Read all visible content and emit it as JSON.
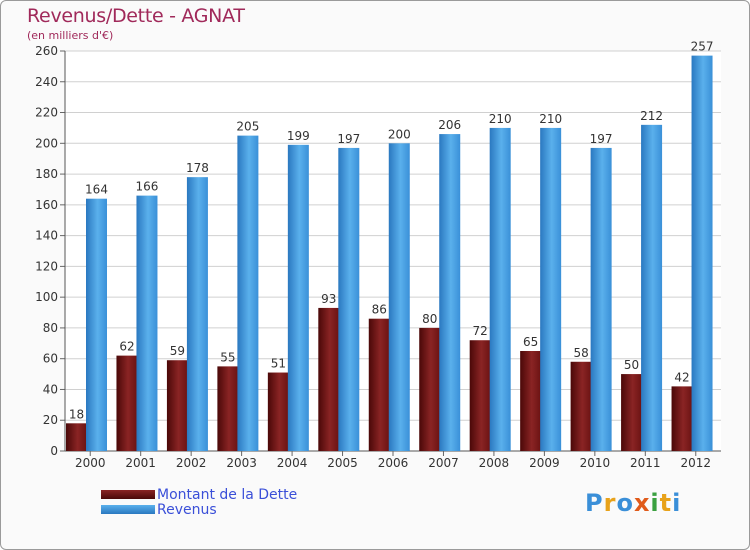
{
  "chart_data": {
    "type": "bar",
    "title": "Revenus/Dette - AGNAT",
    "subtitle": "(en milliers d'€)",
    "categories": [
      "2000",
      "2001",
      "2002",
      "2003",
      "2004",
      "2005",
      "2006",
      "2007",
      "2008",
      "2009",
      "2010",
      "2011",
      "2012"
    ],
    "series": [
      {
        "name": "Montant de la Dette",
        "color": "#7a1a1a",
        "values": [
          18,
          62,
          59,
          55,
          51,
          93,
          86,
          80,
          72,
          65,
          58,
          50,
          42
        ]
      },
      {
        "name": "Revenus",
        "color": "#3a8fd8",
        "values": [
          164,
          166,
          178,
          205,
          199,
          197,
          200,
          206,
          210,
          210,
          197,
          212,
          257
        ]
      }
    ],
    "yticks": [
      0,
      20,
      40,
      60,
      80,
      100,
      120,
      140,
      160,
      180,
      200,
      220,
      240,
      260
    ],
    "ylim": [
      0,
      260
    ],
    "grid": true,
    "legend": "bottom-left"
  },
  "logo": {
    "text": "Proxiti",
    "colors": [
      "#3a8fd8",
      "#e8a21a",
      "#3a8fd8",
      "#e05a1a",
      "#3aa040",
      "#e8a21a",
      "#3a8fd8"
    ]
  }
}
